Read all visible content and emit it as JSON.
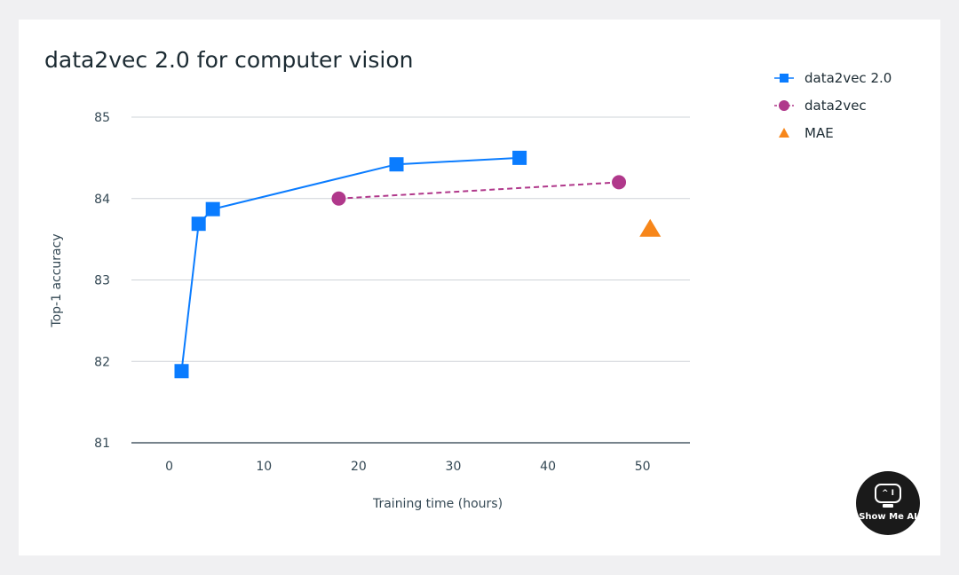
{
  "chart_data": {
    "type": "line",
    "title": "data2vec 2.0 for computer vision",
    "xlabel": "Training time (hours)",
    "ylabel": "Top-1  accuracy",
    "xlim": [
      -4,
      55
    ],
    "ylim": [
      81,
      85
    ],
    "x_ticks": [
      0,
      10,
      20,
      30,
      40,
      50
    ],
    "y_ticks": [
      81,
      82,
      83,
      84,
      85
    ],
    "grid": "horizontal",
    "legend_position": "top-right outside",
    "series": [
      {
        "name": "data2vec 2.0",
        "marker": "square",
        "line": "solid",
        "color": "#0a7cff",
        "x": [
          1.3,
          3.1,
          4.6,
          24.0,
          37.0
        ],
        "y": [
          81.88,
          83.69,
          83.87,
          84.42,
          84.5
        ]
      },
      {
        "name": "data2vec",
        "marker": "circle",
        "line": "dashed",
        "color": "#b0388b",
        "x": [
          17.9,
          47.5
        ],
        "y": [
          84.0,
          84.2
        ]
      },
      {
        "name": "MAE",
        "marker": "triangle",
        "line": "none",
        "color": "#f7861a",
        "x": [
          50.8
        ],
        "y": [
          83.63
        ]
      }
    ]
  },
  "logo": {
    "eyes": "^ I",
    "text": "Show Me AI"
  }
}
